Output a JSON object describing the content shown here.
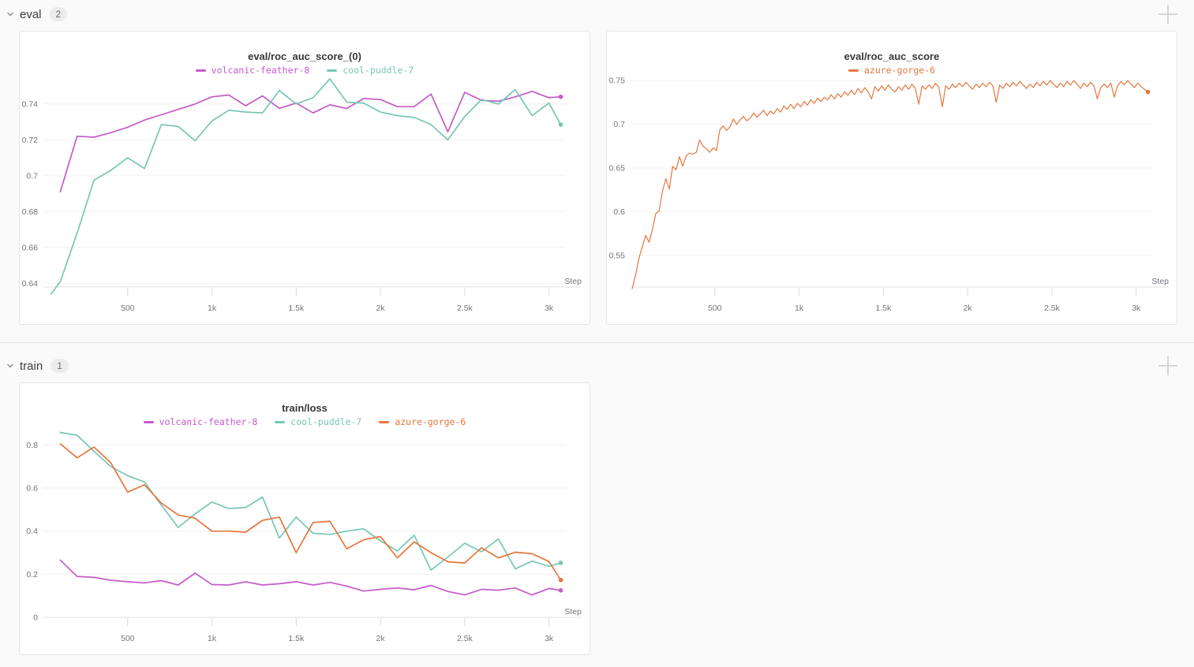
{
  "theme": {
    "page_bg": "#fafafa",
    "panel_bg": "#ffffff",
    "panel_border": "#e4e4e4",
    "grid": "#f1f1f1",
    "axis": "#e2e2e2",
    "tick": "#dadada",
    "tick_text": "#73737d",
    "title_text": "#383838"
  },
  "sections": [
    {
      "label": "eval",
      "count": "2"
    },
    {
      "label": "train",
      "count": "1"
    }
  ],
  "chart_data": [
    {
      "type": "line",
      "title": "eval/roc_auc_score_(0)",
      "axes": {
        "xlabel": "Step",
        "xlim": [
          0,
          3100
        ],
        "ylim": [
          0.638,
          0.754
        ],
        "xticks": [
          {
            "v": 500,
            "label": "500"
          },
          {
            "v": 1000,
            "label": "1k"
          },
          {
            "v": 1500,
            "label": "1.5k"
          },
          {
            "v": 2000,
            "label": "2k"
          },
          {
            "v": 2500,
            "label": "2.5k"
          },
          {
            "v": 3000,
            "label": "3k"
          }
        ],
        "yticks": [
          {
            "v": 0.64,
            "label": "0.64"
          },
          {
            "v": 0.66,
            "label": "0.66"
          },
          {
            "v": 0.68,
            "label": "0.68"
          },
          {
            "v": 0.7,
            "label": "0.7"
          },
          {
            "v": 0.72,
            "label": "0.72"
          },
          {
            "v": 0.74,
            "label": "0.74"
          }
        ]
      },
      "series": [
        {
          "run": "volcanic-feather-8",
          "color": "#C45AC8",
          "end_dot": true,
          "x": [
            100,
            200,
            300,
            400,
            500,
            600,
            700,
            800,
            900,
            1000,
            1100,
            1200,
            1300,
            1400,
            1500,
            1600,
            1700,
            1800,
            1900,
            2000,
            2100,
            2200,
            2300,
            2400,
            2500,
            2600,
            2700,
            2800,
            2900,
            3000,
            3070
          ],
          "y": [
            0.691,
            0.722,
            0.7215,
            0.724,
            0.727,
            0.731,
            0.734,
            0.737,
            0.74,
            0.744,
            0.745,
            0.739,
            0.7445,
            0.7375,
            0.7405,
            0.735,
            0.7395,
            0.7375,
            0.743,
            0.7425,
            0.7385,
            0.7385,
            0.7455,
            0.7245,
            0.7465,
            0.742,
            0.7415,
            0.744,
            0.747,
            0.7435,
            0.744
          ]
        },
        {
          "run": "cool-puddle-7",
          "color": "#76C7B4",
          "end_dot": true,
          "x": [
            44,
            100,
            200,
            300,
            400,
            500,
            600,
            700,
            800,
            900,
            1000,
            1100,
            1200,
            1300,
            1400,
            1500,
            1600,
            1700,
            1800,
            1900,
            2000,
            2100,
            2200,
            2300,
            2400,
            2500,
            2600,
            2700,
            2800,
            2900,
            3000,
            3070
          ],
          "y": [
            0.634,
            0.641,
            0.668,
            0.6975,
            0.703,
            0.71,
            0.704,
            0.7285,
            0.7275,
            0.7195,
            0.7305,
            0.7365,
            0.7355,
            0.735,
            0.7475,
            0.74,
            0.7435,
            0.754,
            0.741,
            0.7405,
            0.7355,
            0.7335,
            0.7325,
            0.7285,
            0.72,
            0.733,
            0.7425,
            0.74,
            0.748,
            0.7335,
            0.7405,
            0.7285
          ]
        }
      ]
    },
    {
      "type": "line",
      "title": "eval/roc_auc_score",
      "axes": {
        "xlabel": "Step",
        "xlim": [
          0,
          3100
        ],
        "ylim": [
          0.514,
          0.752
        ],
        "xticks": [
          {
            "v": 500,
            "label": "500"
          },
          {
            "v": 1000,
            "label": "1k"
          },
          {
            "v": 1500,
            "label": "1.5k"
          },
          {
            "v": 2000,
            "label": "2k"
          },
          {
            "v": 2500,
            "label": "2.5k"
          },
          {
            "v": 3000,
            "label": "3k"
          }
        ],
        "yticks": [
          {
            "v": 0.55,
            "label": "0.55"
          },
          {
            "v": 0.6,
            "label": "0.6"
          },
          {
            "v": 0.65,
            "label": "0.65"
          },
          {
            "v": 0.7,
            "label": "0.7"
          },
          {
            "v": 0.75,
            "label": "0.75"
          }
        ]
      },
      "series": [
        {
          "run": "azure-gorge-6",
          "color": "#E5763C",
          "end_dot": true,
          "x0": 10,
          "dx": 20,
          "y": [
            0.512,
            0.528,
            0.547,
            0.56,
            0.573,
            0.565,
            0.58,
            0.598,
            0.601,
            0.624,
            0.638,
            0.626,
            0.652,
            0.648,
            0.663,
            0.652,
            0.664,
            0.667,
            0.666,
            0.668,
            0.682,
            0.675,
            0.672,
            0.668,
            0.673,
            0.67,
            0.694,
            0.698,
            0.693,
            0.697,
            0.706,
            0.7,
            0.705,
            0.709,
            0.704,
            0.707,
            0.713,
            0.708,
            0.712,
            0.716,
            0.71,
            0.715,
            0.712,
            0.718,
            0.714,
            0.721,
            0.717,
            0.723,
            0.718,
            0.724,
            0.72,
            0.726,
            0.722,
            0.728,
            0.724,
            0.73,
            0.726,
            0.731,
            0.728,
            0.734,
            0.729,
            0.735,
            0.731,
            0.737,
            0.733,
            0.739,
            0.734,
            0.741,
            0.736,
            0.742,
            0.737,
            0.729,
            0.743,
            0.738,
            0.744,
            0.739,
            0.745,
            0.74,
            0.737,
            0.743,
            0.739,
            0.745,
            0.74,
            0.746,
            0.741,
            0.723,
            0.744,
            0.74,
            0.745,
            0.741,
            0.747,
            0.742,
            0.72,
            0.744,
            0.74,
            0.746,
            0.742,
            0.747,
            0.743,
            0.748,
            0.744,
            0.74,
            0.746,
            0.742,
            0.747,
            0.743,
            0.748,
            0.744,
            0.725,
            0.745,
            0.741,
            0.747,
            0.743,
            0.748,
            0.744,
            0.749,
            0.745,
            0.741,
            0.746,
            0.742,
            0.748,
            0.744,
            0.749,
            0.745,
            0.75,
            0.746,
            0.742,
            0.747,
            0.743,
            0.749,
            0.745,
            0.75,
            0.746,
            0.741,
            0.747,
            0.743,
            0.748,
            0.744,
            0.729,
            0.742,
            0.746,
            0.742,
            0.747,
            0.731,
            0.744,
            0.749,
            0.745,
            0.75,
            0.746,
            0.742,
            0.747,
            0.743,
            0.74,
            0.737
          ]
        }
      ]
    },
    {
      "type": "line",
      "title": "train/loss",
      "axes": {
        "xlabel": "Step",
        "xlim": [
          0,
          3100
        ],
        "ylim": [
          0,
          0.867
        ],
        "xticks": [
          {
            "v": 500,
            "label": "500"
          },
          {
            "v": 1000,
            "label": "1k"
          },
          {
            "v": 1500,
            "label": "1.5k"
          },
          {
            "v": 2000,
            "label": "2k"
          },
          {
            "v": 2500,
            "label": "2.5k"
          },
          {
            "v": 3000,
            "label": "3k"
          }
        ],
        "yticks": [
          {
            "v": 0,
            "label": "0"
          },
          {
            "v": 0.2,
            "label": "0.2"
          },
          {
            "v": 0.4,
            "label": "0.4"
          },
          {
            "v": 0.6,
            "label": "0.6"
          },
          {
            "v": 0.8,
            "label": "0.8"
          }
        ]
      },
      "series": [
        {
          "run": "volcanic-feather-8",
          "color": "#C45AC8",
          "end_dot": true,
          "x": [
            100,
            200,
            300,
            400,
            500,
            600,
            700,
            800,
            900,
            1000,
            1100,
            1200,
            1300,
            1400,
            1500,
            1600,
            1700,
            1800,
            1900,
            2000,
            2100,
            2200,
            2300,
            2400,
            2500,
            2600,
            2700,
            2800,
            2900,
            3000,
            3070
          ],
          "y": [
            0.266,
            0.19,
            0.185,
            0.172,
            0.165,
            0.16,
            0.17,
            0.15,
            0.205,
            0.152,
            0.15,
            0.165,
            0.15,
            0.156,
            0.165,
            0.15,
            0.162,
            0.145,
            0.122,
            0.13,
            0.136,
            0.128,
            0.148,
            0.12,
            0.104,
            0.13,
            0.126,
            0.136,
            0.104,
            0.134,
            0.125
          ]
        },
        {
          "run": "cool-puddle-7",
          "color": "#76C7B4",
          "end_dot": true,
          "x": [
            100,
            200,
            300,
            400,
            500,
            600,
            700,
            800,
            900,
            1000,
            1100,
            1200,
            1300,
            1400,
            1500,
            1600,
            1700,
            1800,
            1900,
            2000,
            2100,
            2200,
            2300,
            2400,
            2500,
            2600,
            2700,
            2800,
            2900,
            3000,
            3070
          ],
          "y": [
            0.858,
            0.845,
            0.77,
            0.7,
            0.657,
            0.628,
            0.52,
            0.417,
            0.48,
            0.535,
            0.505,
            0.51,
            0.558,
            0.368,
            0.465,
            0.39,
            0.385,
            0.4,
            0.411,
            0.355,
            0.308,
            0.381,
            0.219,
            0.28,
            0.344,
            0.304,
            0.364,
            0.225,
            0.261,
            0.237,
            0.253
          ]
        },
        {
          "run": "azure-gorge-6",
          "color": "#E5763C",
          "end_dot": true,
          "x": [
            100,
            200,
            300,
            400,
            500,
            600,
            700,
            800,
            900,
            1000,
            1100,
            1200,
            1300,
            1400,
            1500,
            1600,
            1700,
            1800,
            1900,
            2000,
            2100,
            2200,
            2300,
            2400,
            2500,
            2600,
            2700,
            2800,
            2900,
            3000,
            3070
          ],
          "y": [
            0.805,
            0.74,
            0.79,
            0.717,
            0.581,
            0.615,
            0.53,
            0.475,
            0.46,
            0.4,
            0.4,
            0.395,
            0.45,
            0.465,
            0.3,
            0.44,
            0.446,
            0.318,
            0.36,
            0.375,
            0.276,
            0.35,
            0.3,
            0.258,
            0.252,
            0.323,
            0.276,
            0.302,
            0.295,
            0.259,
            0.173
          ]
        }
      ]
    }
  ]
}
